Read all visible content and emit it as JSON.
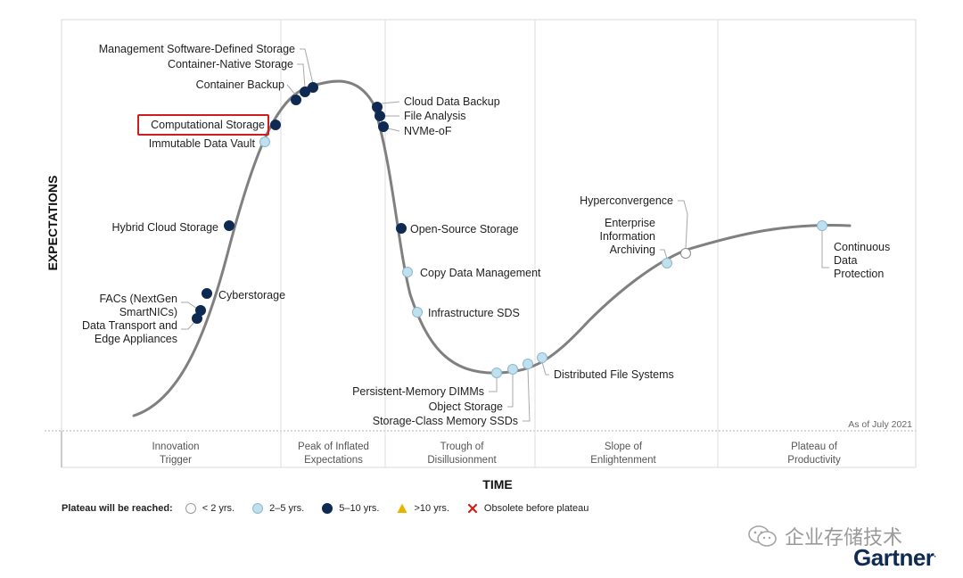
{
  "chart": {
    "y_axis_title": "EXPECTATIONS",
    "x_axis_title": "TIME",
    "as_of": "As of July 2021",
    "phases": [
      {
        "id": "trigger",
        "lines": [
          "Innovation",
          "Trigger"
        ]
      },
      {
        "id": "peak",
        "lines": [
          "Peak of Inflated",
          "Expectations"
        ]
      },
      {
        "id": "trough",
        "lines": [
          "Trough of",
          "Disillusionment"
        ]
      },
      {
        "id": "slope",
        "lines": [
          "Slope of",
          "Enlightenment"
        ]
      },
      {
        "id": "plateau",
        "lines": [
          "Plateau of",
          "Productivity"
        ]
      }
    ],
    "technologies": [
      {
        "name": "Management Software-Defined Storage",
        "category": "5-10"
      },
      {
        "name": "Container-Native Storage",
        "category": "5-10"
      },
      {
        "name": "Container Backup",
        "category": "5-10"
      },
      {
        "name": "Computational Storage",
        "category": "5-10",
        "highlighted": true
      },
      {
        "name": "Immutable Data Vault",
        "category": "2-5"
      },
      {
        "name": "Hybrid Cloud Storage",
        "category": "5-10"
      },
      {
        "name": "Cyberstorage",
        "category": "5-10"
      },
      {
        "name": "FACs (NextGen SmartNICs)",
        "category": "5-10"
      },
      {
        "name": "Data Transport and Edge Appliances",
        "category": "5-10"
      },
      {
        "name": "Cloud Data Backup",
        "category": "5-10"
      },
      {
        "name": "File Analysis",
        "category": "5-10"
      },
      {
        "name": "NVMe-oF",
        "category": "5-10"
      },
      {
        "name": "Open-Source Storage",
        "category": "5-10"
      },
      {
        "name": "Copy Data Management",
        "category": "2-5"
      },
      {
        "name": "Infrastructure SDS",
        "category": "2-5"
      },
      {
        "name": "Persistent-Memory DIMMs",
        "category": "2-5"
      },
      {
        "name": "Object Storage",
        "category": "2-5"
      },
      {
        "name": "Storage-Class Memory SSDs",
        "category": "2-5"
      },
      {
        "name": "Distributed File Systems",
        "category": "2-5"
      },
      {
        "name": "Hyperconvergence",
        "category": "<2"
      },
      {
        "name": "Enterprise Information Archiving",
        "category": "2-5"
      },
      {
        "name": "Continuous Data Protection",
        "category": "2-5"
      }
    ]
  },
  "legend": {
    "title": "Plateau will be reached:",
    "items": [
      {
        "label": "< 2 yrs.",
        "symbol": "white-circle-icon"
      },
      {
        "label": "2–5 yrs.",
        "symbol": "light-blue-circle-icon"
      },
      {
        "label": "5–10 yrs.",
        "symbol": "navy-circle-icon"
      },
      {
        "label": ">10 yrs.",
        "symbol": "yellow-triangle-icon"
      },
      {
        "label": "Obsolete before plateau",
        "symbol": "red-x-icon"
      }
    ]
  },
  "watermark": "企业存储技术",
  "brand": "Gartner",
  "colors": {
    "navy": "#0e2a52",
    "light_blue": "#bfe0ee",
    "white": "#ffffff",
    "highlight": "#d01c1c",
    "curve": "#808080",
    "triangle": "#e8b400",
    "x_mark": "#d01c1c"
  }
}
